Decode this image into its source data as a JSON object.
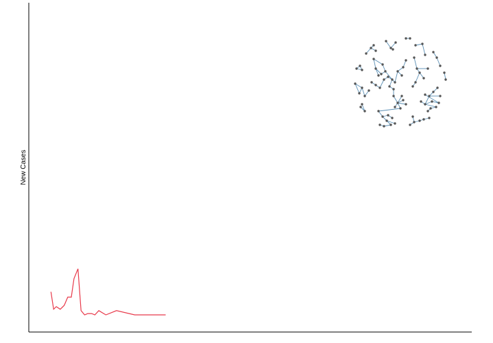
{
  "chart_data": {
    "type": "line",
    "title": "",
    "xlabel": "",
    "ylabel": "New Cases",
    "xlim": [
      0,
      100
    ],
    "ylim": [
      0,
      100
    ],
    "grid": false,
    "legend": "none",
    "series": [
      {
        "name": "cases",
        "color": "#e8394a",
        "x": [
          5,
          5.6,
          6.2,
          7.1,
          8,
          8.8,
          9.6,
          10.2,
          11.1,
          11.8,
          12.6,
          13.3,
          14.2,
          14.9,
          15.8,
          17.4,
          19.8,
          23.9,
          30.9
        ],
        "y": [
          7.0,
          1.7,
          2.5,
          1.7,
          2.9,
          5.4,
          5.4,
          11.0,
          14.0,
          1.3,
          0.0,
          0.4,
          0.4,
          0.0,
          1.3,
          0.0,
          1.3,
          0.0,
          0.0
        ]
      }
    ]
  },
  "network": {
    "node_color": "#555555",
    "edge_color": "#5a8fb5"
  }
}
